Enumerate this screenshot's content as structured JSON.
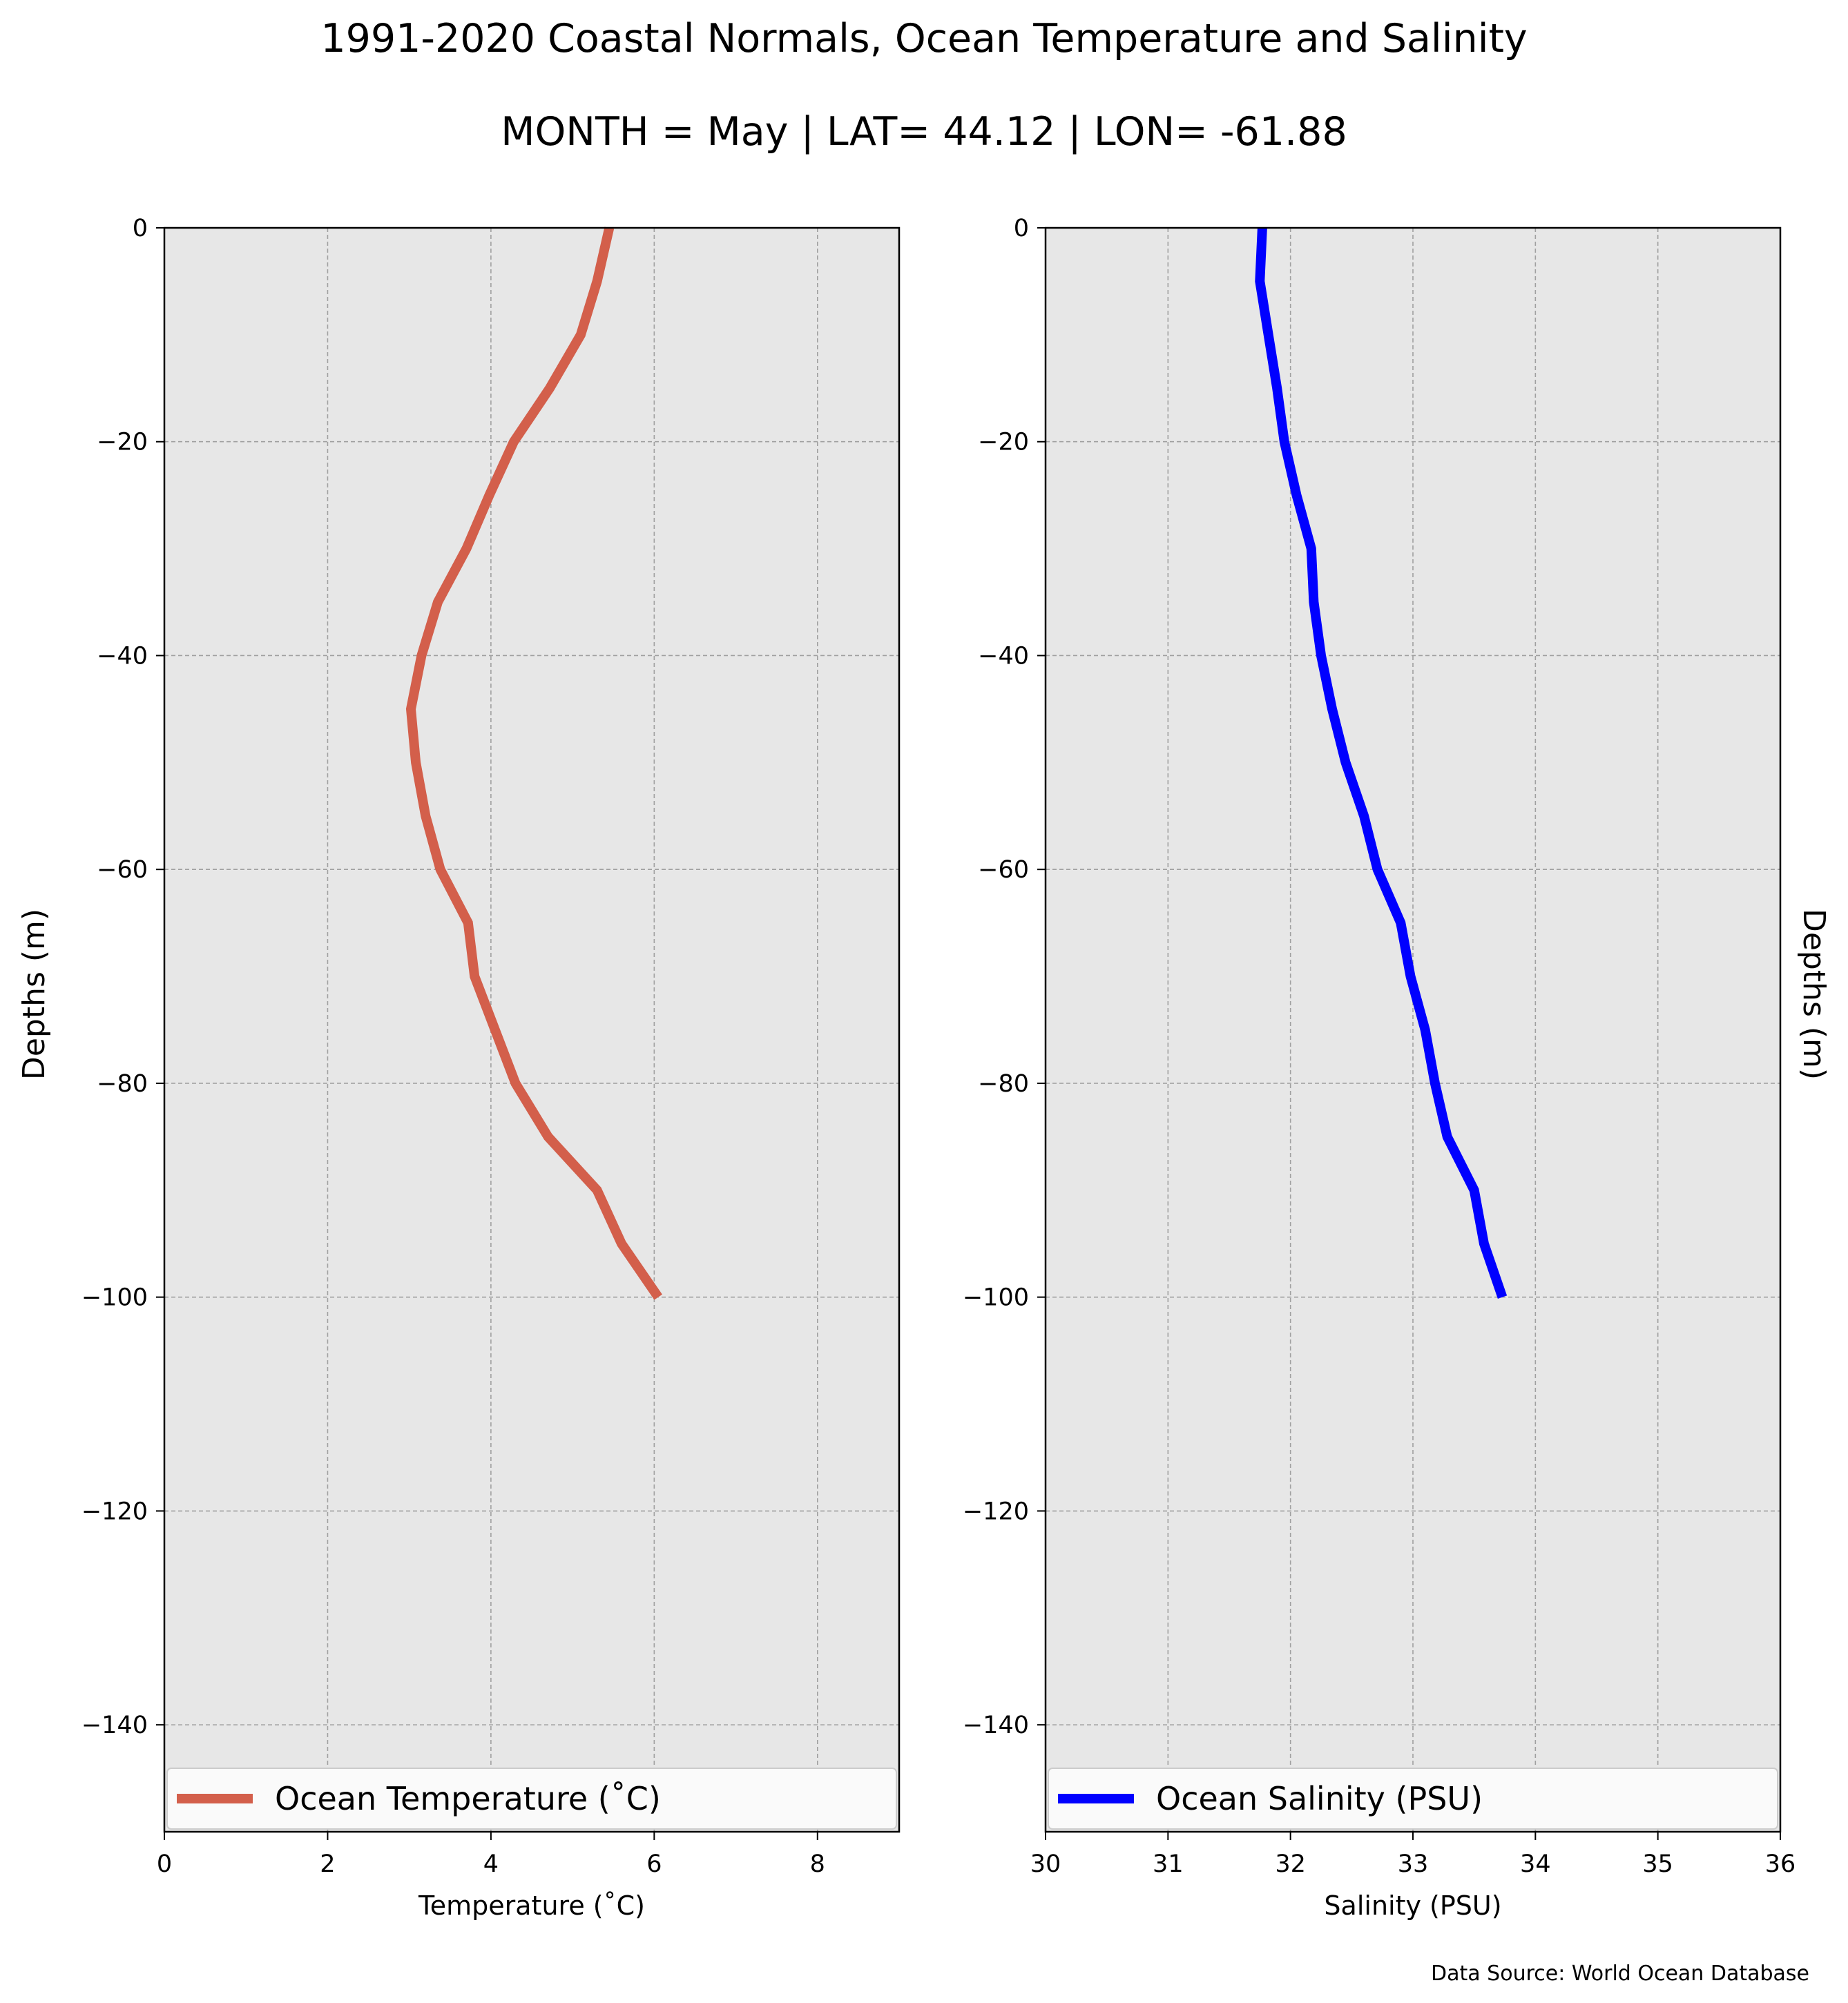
{
  "figure": {
    "title": "1991-2020 Coastal Normals, Ocean Temperature and Salinity",
    "subtitle": "MONTH = May | LAT= 44.12 | LON= -61.88",
    "source": "Data Source: World Ocean Database"
  },
  "colors": {
    "temperature": "#d35f4b",
    "salinity": "#0000ff",
    "plot_bg": "#e7e7e7",
    "grid": "#a0a0a0"
  },
  "chart_data": [
    {
      "type": "line",
      "series": [
        {
          "name": "Ocean Temperature (˚C)",
          "x": [
            5.45,
            5.3,
            5.1,
            4.72,
            4.28,
            3.98,
            3.7,
            3.35,
            3.15,
            3.02,
            3.08,
            3.2,
            3.38,
            3.72,
            3.8,
            4.05,
            4.3,
            4.7,
            5.3,
            5.6,
            6.05
          ],
          "y": [
            0,
            -5,
            -10,
            -15,
            -20,
            -25,
            -30,
            -35,
            -40,
            -45,
            -50,
            -55,
            -60,
            -65,
            -70,
            -75,
            -80,
            -85,
            -90,
            -95,
            -100
          ]
        }
      ],
      "xlabel": "Temperature (˚C)",
      "ylabel": "Depths (m)",
      "xlim": [
        0,
        9
      ],
      "ylim": [
        -150,
        0
      ],
      "xticks": [
        0,
        2,
        4,
        6,
        8
      ],
      "xtick_labels": [
        "0",
        "2",
        "4",
        "6",
        "8"
      ],
      "yticks": [
        0,
        -20,
        -40,
        -60,
        -80,
        -100,
        -120,
        -140
      ],
      "ytick_labels": [
        "0",
        "−20",
        "−40",
        "−60",
        "−80",
        "−100",
        "−120",
        "−140"
      ],
      "grid": true,
      "legend": "lower center"
    },
    {
      "type": "line",
      "series": [
        {
          "name": "Ocean Salinity (PSU)",
          "x": [
            31.77,
            31.75,
            31.82,
            31.89,
            31.95,
            32.05,
            32.17,
            32.19,
            32.25,
            32.34,
            32.45,
            32.6,
            32.71,
            32.9,
            32.98,
            33.1,
            33.18,
            33.28,
            33.5,
            33.58,
            33.73
          ],
          "y": [
            0,
            -5,
            -10,
            -15,
            -20,
            -25,
            -30,
            -35,
            -40,
            -45,
            -50,
            -55,
            -60,
            -65,
            -70,
            -75,
            -80,
            -85,
            -90,
            -95,
            -100
          ]
        }
      ],
      "xlabel": "Salinity (PSU)",
      "ylabel": "Depths (m)",
      "xlim": [
        30,
        36
      ],
      "ylim": [
        -150,
        0
      ],
      "xticks": [
        30,
        31,
        32,
        33,
        34,
        35,
        36
      ],
      "xtick_labels": [
        "30",
        "31",
        "32",
        "33",
        "34",
        "35",
        "36"
      ],
      "yticks": [
        0,
        -20,
        -40,
        -60,
        -80,
        -100,
        -120,
        -140
      ],
      "ytick_labels": [
        "0",
        "−20",
        "−40",
        "−60",
        "−80",
        "−100",
        "−120",
        "−140"
      ],
      "grid": true,
      "legend": "lower center"
    }
  ]
}
